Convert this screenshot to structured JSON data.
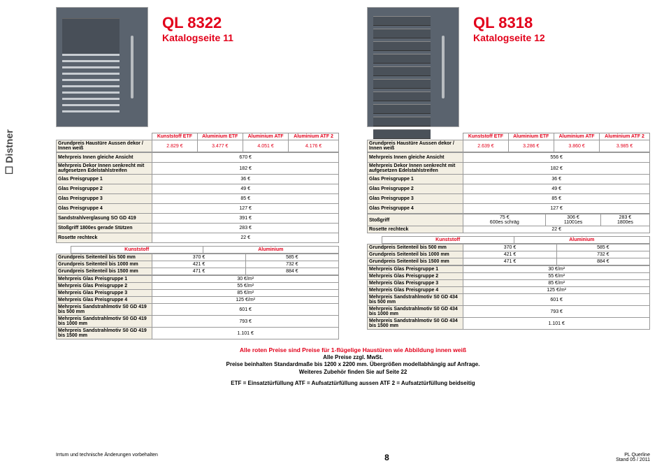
{
  "sidebar_logo": "☐ Distner",
  "products": {
    "left": {
      "model": "QL 8322",
      "catalog": "Katalogseite 11"
    },
    "right": {
      "model": "QL 8318",
      "catalog": "Katalogseite 12"
    }
  },
  "headers": [
    "Kunststoff ETF",
    "Aluminium ETF",
    "Aluminium ATF",
    "Aluminium ATF 2"
  ],
  "left": {
    "base_label": "Grundpreis Haustüre Aussen dekor / Innen weiß",
    "base_vals": [
      "2.829 €",
      "3.477 €",
      "4.051 €",
      "4.176 €"
    ],
    "rows_wide": [
      [
        "Mehrpreis Innen gleiche Ansicht",
        "670 €"
      ],
      [
        "Mehrpreis Dekor Innen senkrecht mit aufgesetzen Edelstahlstreifen",
        "182 €"
      ],
      [
        "Glas Preisgruppe 1",
        "36 €"
      ],
      [
        "Glas Preisgruppe 2",
        "49 €"
      ],
      [
        "Glas Preisgruppe 3",
        "85 €"
      ],
      [
        "Glas Preisgruppe 4",
        "127 €"
      ],
      [
        "Sandstrahlverglasung SO GD 419",
        "391 €"
      ],
      [
        "Stoßgriff 1800es gerade Stützen",
        "283 €"
      ],
      [
        "Rosette rechteck",
        "22 €"
      ]
    ],
    "side_hdr": [
      "Kunststoff",
      "Aluminium"
    ],
    "side_rows": [
      [
        "Grundpreis Seitenteil  bis 500 mm",
        "370 €",
        "585 €"
      ],
      [
        "Grundpreis Seitenteil  bis 1000 mm",
        "421 €",
        "732 €"
      ],
      [
        "Grundpreis Seitenteil  bis 1500 mm",
        "471 €",
        "884 €"
      ]
    ],
    "mehr_rows": [
      [
        "Mehrpreis Glas Preisgruppe 1",
        "30 €/m²"
      ],
      [
        "Mehrpreis Glas Preisgruppe 2",
        "55 €/m²"
      ],
      [
        "Mehrpreis Glas Preisgruppe 3",
        "85 €/m²"
      ],
      [
        "Mehrpreis Glas Preisgruppe 4",
        "125 €/m²"
      ],
      [
        "Mehrpreis Sandstrahlmotiv S0 GD 419 bis 500 mm",
        "601 €"
      ],
      [
        "Mehrpreis Sandstrahlmotiv S0 GD 419 bis 1000 mm",
        "793 €"
      ],
      [
        "Mehrpreis Sandstrahlmotiv S0 GD 419 bis 1500 mm",
        "1.101 €"
      ]
    ]
  },
  "right": {
    "base_label": "Grundpreis Haustüre Aussen dekor / Innen weiß",
    "base_vals": [
      "2.639 €",
      "3.286 €",
      "3.860 €",
      "3.985 €"
    ],
    "rows_wide": [
      [
        "Mehrpreis Innen gleiche Ansicht",
        "556 €"
      ],
      [
        "Mehrpreis Dekor Innen senkrecht mit aufgesetzen Edelstahlstreifen",
        "182 €"
      ],
      [
        "Glas Preisgruppe 1",
        "36 €"
      ],
      [
        "Glas Preisgruppe 2",
        "49 €"
      ],
      [
        "Glas Preisgruppe 3",
        "85 €"
      ],
      [
        "Glas Preisgruppe 4",
        "127 €"
      ]
    ],
    "stoss_label": "Stoßgriff",
    "stoss_vals": [
      "75 €\n600es schräg",
      "306 €\n11001es",
      "283 €\n1800es"
    ],
    "rosette": [
      "Rosette rechteck",
      "22 €"
    ],
    "side_hdr": [
      "Kunststoff",
      "Aluminium"
    ],
    "side_rows": [
      [
        "Grundpreis Seitenteil  bis 500 mm",
        "370 €",
        "585 €"
      ],
      [
        "Grundpreis Seitenteil  bis 1000 mm",
        "421 €",
        "732 €"
      ],
      [
        "Grundpreis Seitenteil  bis 1500 mm",
        "471 €",
        "884 €"
      ]
    ],
    "mehr_rows": [
      [
        "Mehrpreis Glas Preisgruppe 1",
        "30 €/m²"
      ],
      [
        "Mehrpreis Glas Preisgruppe 2",
        "55 €/m²"
      ],
      [
        "Mehrpreis Glas Preisgruppe 3",
        "85 €/m²"
      ],
      [
        "Mehrpreis Glas Preisgruppe 4",
        "125 €/m²"
      ],
      [
        "Mehrpreis Sandstrahlmotiv S0 GD 434 bis 500 mm",
        "601 €"
      ],
      [
        "Mehrpreis Sandstrahlmotiv S0 GD 434 bis 1000 mm",
        "793 €"
      ],
      [
        "Mehrpreis Sandstrahlmotiv S0 GD 434 bis 1500 mm",
        "1.101 €"
      ]
    ]
  },
  "footer": {
    "red1": "Alle roten Preise sind Preise für 1-flügelige Haustüren wie Abbildung innen weiß",
    "l1": "Alle Preise zzgl. MwSt.",
    "l2": "Preise beinhalten Standardmaße bis 1200 x 2200 mm. Übergrößen modellabhängig auf Anfrage.",
    "l3": "Weiteres Zubehör finden Sie auf Seite 22",
    "l4": "ETF = Einsatztürfüllung   ATF = Aufsatztürfüllung aussen   ATF 2  = Aufsatztürfüllung beidseitig"
  },
  "bottom": {
    "left": "Irrtum und technische Änderungen vorbehalten",
    "page": "8",
    "right1": "PL Querline",
    "right2": "Stand 05 / 2011"
  }
}
